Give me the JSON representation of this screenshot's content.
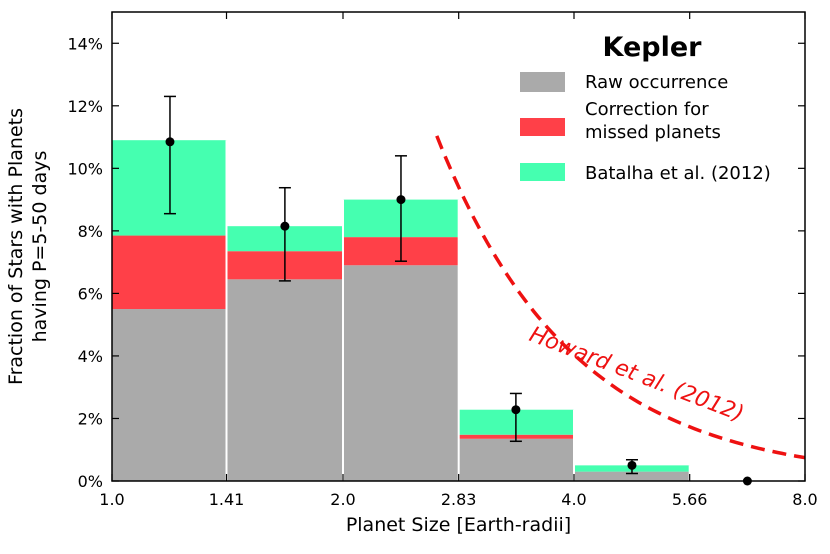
{
  "chart_data": {
    "type": "bar",
    "title": "",
    "xlabel": "Planet Size [Earth-radii]",
    "ylabel_line1": "Fraction of Stars with Planets",
    "ylabel_line2": "having P=5-50 days",
    "x_scale": "log",
    "xlim": [
      1.0,
      8.0
    ],
    "ylim": [
      0,
      15
    ],
    "x_ticks": [
      1.0,
      1.41,
      2.0,
      2.83,
      4.0,
      5.66,
      8.0
    ],
    "x_tick_labels": [
      "1.0",
      "1.41",
      "2.0",
      "2.83",
      "4.0",
      "5.66",
      "8.0"
    ],
    "y_ticks": [
      0,
      2,
      4,
      6,
      8,
      10,
      12,
      14
    ],
    "y_tick_labels": [
      "0%",
      "2%",
      "4%",
      "6%",
      "8%",
      "10%",
      "12%",
      "14%"
    ],
    "bins": [
      {
        "x0": 1.0,
        "x1": 1.41
      },
      {
        "x0": 1.41,
        "x1": 2.0
      },
      {
        "x0": 2.0,
        "x1": 2.83
      },
      {
        "x0": 2.83,
        "x1": 4.0
      },
      {
        "x0": 4.0,
        "x1": 5.66
      },
      {
        "x0": 5.66,
        "x1": 8.0
      }
    ],
    "series": [
      {
        "name": "Raw occurrence",
        "color": "#aaaaaa",
        "values": [
          5.5,
          6.45,
          6.9,
          1.35,
          0.3,
          0.0
        ]
      },
      {
        "name": "Correction for missed planets",
        "color": "#ff4048",
        "values": [
          2.35,
          0.9,
          0.9,
          0.13,
          0.0,
          0.0
        ]
      },
      {
        "name": "Batalha et al. (2012)",
        "color": "#45ffb0",
        "values": [
          3.05,
          0.8,
          1.2,
          0.8,
          0.2,
          0.0
        ]
      }
    ],
    "points": [
      {
        "x": 1.19,
        "y": 10.85,
        "err_low": 8.55,
        "err_high": 12.3
      },
      {
        "x": 1.68,
        "y": 8.15,
        "err_low": 6.4,
        "err_high": 9.38
      },
      {
        "x": 2.38,
        "y": 9.0,
        "err_low": 7.03,
        "err_high": 10.4
      },
      {
        "x": 3.36,
        "y": 2.28,
        "err_low": 1.27,
        "err_high": 2.8
      },
      {
        "x": 4.76,
        "y": 0.5,
        "err_low": 0.24,
        "err_high": 0.68
      },
      {
        "x": 6.73,
        "y": 0.0,
        "err_low": 0.0,
        "err_high": 0.0
      }
    ],
    "model_curve": {
      "name": "Howard et al. (2012)",
      "color": "#ee1111",
      "style": "dashed",
      "form": "k * R^alpha",
      "k": 119,
      "alpha": -2.44,
      "x_start": 2.65,
      "x_end": 8.0
    },
    "legend": {
      "title": "Kepler",
      "position": "top-right",
      "entries": [
        {
          "label": "Raw occurrence",
          "color": "#aaaaaa",
          "lines": [
            "Raw occurrence"
          ]
        },
        {
          "label": "Correction for missed planets",
          "color": "#ff4048",
          "lines": [
            "Correction for",
            "missed planets"
          ]
        },
        {
          "label": "Batalha et al. (2012)",
          "color": "#45ffb0",
          "lines": [
            "Batalha et al. (2012)"
          ]
        }
      ]
    },
    "annotation": {
      "text": "Howard et al. (2012)",
      "color": "#ee1111"
    }
  }
}
